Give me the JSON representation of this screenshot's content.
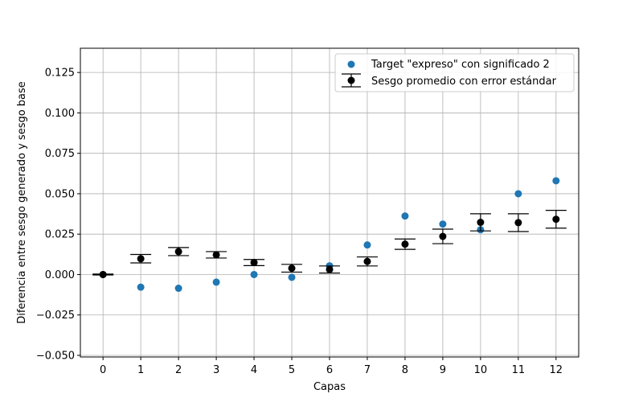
{
  "chart_data": {
    "type": "scatter",
    "xlabel": "Capas",
    "ylabel": "Diferencia entre sesgo generado y sesgo base",
    "xlim": [
      -0.6,
      12.6
    ],
    "ylim": [
      -0.051,
      0.14
    ],
    "x_ticks": [
      0,
      1,
      2,
      3,
      4,
      5,
      6,
      7,
      8,
      9,
      10,
      11,
      12
    ],
    "y_ticks": [
      -0.05,
      -0.025,
      0.0,
      0.025,
      0.05,
      0.075,
      0.1,
      0.125
    ],
    "y_tick_labels": [
      "−0.050",
      "−0.025",
      "0.000",
      "0.025",
      "0.050",
      "0.075",
      "0.100",
      "0.125"
    ],
    "grid": true,
    "legend_position": "top-right",
    "series": [
      {
        "name": "Target \"expreso\" con significado 2",
        "kind": "scatter",
        "color": "#1f77b4",
        "x": [
          0,
          1,
          2,
          3,
          4,
          5,
          6,
          7,
          8,
          9,
          10,
          11,
          12
        ],
        "y": [
          0.0,
          -0.0078,
          -0.0085,
          -0.0047,
          0.0,
          -0.0017,
          0.0054,
          0.0183,
          0.0362,
          0.0312,
          0.0277,
          0.05,
          0.058
        ]
      },
      {
        "name": "Sesgo promedio con error estándar",
        "kind": "errorbar",
        "color": "#000000",
        "x": [
          0,
          1,
          2,
          3,
          4,
          5,
          6,
          7,
          8,
          9,
          10,
          11,
          12
        ],
        "y": [
          0.0,
          0.0098,
          0.0142,
          0.0122,
          0.0074,
          0.0039,
          0.0031,
          0.0081,
          0.0188,
          0.0236,
          0.0323,
          0.0321,
          0.0342
        ],
        "err": [
          0.0003,
          0.0026,
          0.0025,
          0.002,
          0.0019,
          0.0024,
          0.0022,
          0.0028,
          0.0032,
          0.0045,
          0.0053,
          0.0055,
          0.0055
        ]
      }
    ]
  }
}
